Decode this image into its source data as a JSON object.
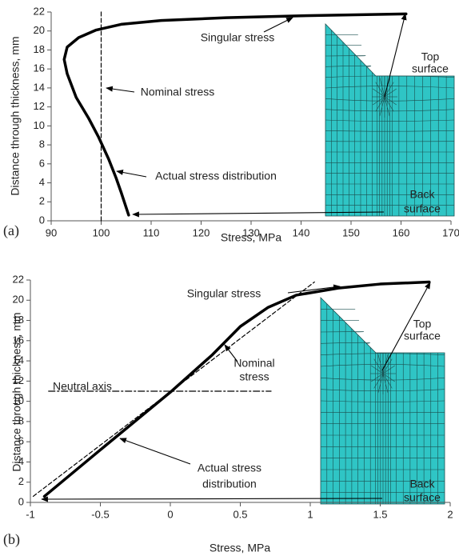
{
  "chart_data": [
    {
      "type": "line",
      "panel_label": "(a)",
      "xlabel": "Stress, MPa",
      "ylabel": "Distance through thickness, mm",
      "xlim": [
        90,
        170
      ],
      "ylim": [
        0,
        22
      ],
      "xticks": [
        90,
        100,
        110,
        120,
        130,
        140,
        150,
        160,
        170
      ],
      "yticks": [
        0,
        2,
        4,
        6,
        8,
        10,
        12,
        14,
        16,
        18,
        20,
        22
      ],
      "series": [
        {
          "style": "solid",
          "color": "#000000",
          "x": [
            105.5,
            104,
            103,
            101.5,
            99.5,
            97.5,
            95,
            93.2,
            92.6,
            93.2,
            95.5,
            99,
            104,
            112,
            125,
            140,
            161
          ],
          "values": [
            0.6,
            3,
            4.5,
            6.5,
            8.8,
            10.8,
            13,
            15.5,
            17,
            18.3,
            19.3,
            20.1,
            20.7,
            21.1,
            21.4,
            21.6,
            21.8
          ]
        },
        {
          "style": "dashed",
          "color": "#000000",
          "x": [
            100,
            100
          ],
          "values": [
            0,
            22
          ]
        }
      ],
      "annotations": [
        {
          "lines": [
            "Singular stress"
          ]
        },
        {
          "lines": [
            "Top",
            "surface"
          ]
        },
        {
          "lines": [
            "Nominal stress"
          ]
        },
        {
          "lines": [
            "Actual stress distribution"
          ]
        },
        {
          "lines": [
            "Back",
            "surface"
          ]
        }
      ]
    },
    {
      "type": "line",
      "panel_label": "(b)",
      "xlabel": "Stress, MPa",
      "ylabel": "Distance through thickness, mm",
      "xlim": [
        -1,
        2
      ],
      "ylim": [
        0,
        22
      ],
      "xticks": [
        -1,
        -0.5,
        0,
        0.5,
        1,
        1.5,
        2
      ],
      "yticks": [
        0,
        2,
        4,
        6,
        8,
        10,
        12,
        14,
        16,
        18,
        20,
        22
      ],
      "series": [
        {
          "style": "solid",
          "color": "#000000",
          "x": [
            -0.9,
            -0.5,
            0,
            0.3,
            0.5,
            0.7,
            0.9,
            1.2,
            1.5,
            1.85
          ],
          "values": [
            0.6,
            5.2,
            10.9,
            14.6,
            17.4,
            19.3,
            20.5,
            21.2,
            21.6,
            21.8
          ]
        },
        {
          "style": "dashed",
          "color": "#000000",
          "x": [
            -0.98,
            1.03
          ],
          "values": [
            0.6,
            21.8
          ]
        },
        {
          "style": "dashdot",
          "color": "#000000",
          "x": [
            -0.87,
            0.72
          ],
          "values": [
            11,
            11
          ]
        }
      ],
      "annotations": [
        {
          "lines": [
            "Singular stress"
          ]
        },
        {
          "lines": [
            "Top",
            "surface"
          ]
        },
        {
          "lines": [
            "Nominal",
            "stress"
          ]
        },
        {
          "lines": [
            "Neutral axis"
          ]
        },
        {
          "lines": [
            "Actual stress",
            "distribution"
          ]
        },
        {
          "lines": [
            "Back",
            "surface"
          ]
        }
      ]
    }
  ]
}
